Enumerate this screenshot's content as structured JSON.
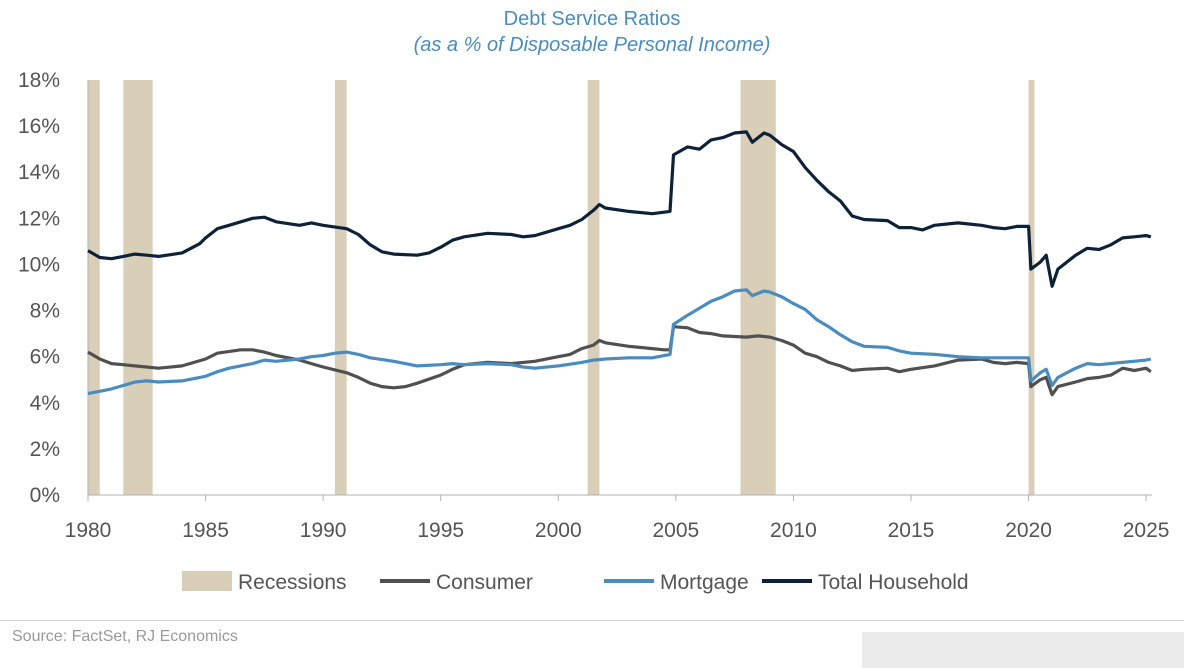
{
  "chart_data": {
    "type": "line",
    "title": "Debt Service Ratios",
    "subtitle": "(as a % of Disposable Personal Income)",
    "xlim": [
      1980,
      2025.25
    ],
    "ylim": [
      0,
      18
    ],
    "x_ticks": [
      "1980",
      "1985",
      "1990",
      "1995",
      "2000",
      "2005",
      "2010",
      "2015",
      "2020",
      "2025"
    ],
    "y_ticks": [
      "0%",
      "2%",
      "4%",
      "6%",
      "8%",
      "10%",
      "12%",
      "14%",
      "16%",
      "18%"
    ],
    "grid": false,
    "legend_position": "bottom",
    "recessions": {
      "name": "Recessions",
      "color": "#d9cfb8",
      "periods": [
        [
          1980.0,
          1980.5
        ],
        [
          1981.5,
          1982.75
        ],
        [
          1990.5,
          1991.0
        ],
        [
          2001.25,
          2001.75
        ],
        [
          2007.75,
          2009.25
        ],
        [
          2020.0,
          2020.25
        ]
      ]
    },
    "series": [
      {
        "name": "Consumer",
        "color": "#505050",
        "points": [
          [
            1980.0,
            6.2
          ],
          [
            1980.5,
            5.9
          ],
          [
            1981.0,
            5.7
          ],
          [
            1981.5,
            5.65
          ],
          [
            1982.0,
            5.6
          ],
          [
            1983.0,
            5.5
          ],
          [
            1984.0,
            5.6
          ],
          [
            1985.0,
            5.9
          ],
          [
            1985.5,
            6.15
          ],
          [
            1986.5,
            6.3
          ],
          [
            1987.0,
            6.3
          ],
          [
            1987.5,
            6.2
          ],
          [
            1988.0,
            6.05
          ],
          [
            1989.0,
            5.85
          ],
          [
            1989.5,
            5.7
          ],
          [
            1990.0,
            5.55
          ],
          [
            1991.0,
            5.3
          ],
          [
            1991.5,
            5.1
          ],
          [
            1992.0,
            4.85
          ],
          [
            1992.5,
            4.7
          ],
          [
            1993.0,
            4.65
          ],
          [
            1993.5,
            4.7
          ],
          [
            1994.0,
            4.85
          ],
          [
            1995.0,
            5.2
          ],
          [
            1995.5,
            5.45
          ],
          [
            1996.0,
            5.65
          ],
          [
            1997.0,
            5.75
          ],
          [
            1998.0,
            5.7
          ],
          [
            1999.0,
            5.8
          ],
          [
            1999.75,
            5.95
          ],
          [
            2000.0,
            6.0
          ],
          [
            2000.5,
            6.1
          ],
          [
            2001.0,
            6.35
          ],
          [
            2001.5,
            6.5
          ],
          [
            2001.75,
            6.7
          ],
          [
            2002.0,
            6.6
          ],
          [
            2003.0,
            6.45
          ],
          [
            2004.0,
            6.35
          ],
          [
            2004.5,
            6.3
          ],
          [
            2004.75,
            6.3
          ],
          [
            2004.9,
            7.3
          ],
          [
            2005.5,
            7.25
          ],
          [
            2006.0,
            7.05
          ],
          [
            2006.5,
            7.0
          ],
          [
            2007.0,
            6.9
          ],
          [
            2008.0,
            6.85
          ],
          [
            2008.5,
            6.9
          ],
          [
            2009.0,
            6.85
          ],
          [
            2009.5,
            6.7
          ],
          [
            2010.0,
            6.5
          ],
          [
            2010.5,
            6.15
          ],
          [
            2011.0,
            6.0
          ],
          [
            2011.5,
            5.75
          ],
          [
            2012.0,
            5.6
          ],
          [
            2012.5,
            5.4
          ],
          [
            2013.0,
            5.45
          ],
          [
            2014.0,
            5.5
          ],
          [
            2014.5,
            5.35
          ],
          [
            2015.0,
            5.45
          ],
          [
            2016.0,
            5.6
          ],
          [
            2017.0,
            5.85
          ],
          [
            2018.0,
            5.9
          ],
          [
            2018.5,
            5.75
          ],
          [
            2019.0,
            5.7
          ],
          [
            2019.5,
            5.75
          ],
          [
            2020.0,
            5.7
          ],
          [
            2020.1,
            4.7
          ],
          [
            2020.5,
            5.0
          ],
          [
            2020.75,
            5.1
          ],
          [
            2021.0,
            4.35
          ],
          [
            2021.25,
            4.7
          ],
          [
            2022.0,
            4.9
          ],
          [
            2022.5,
            5.05
          ],
          [
            2023.0,
            5.1
          ],
          [
            2023.5,
            5.2
          ],
          [
            2024.0,
            5.5
          ],
          [
            2024.5,
            5.4
          ],
          [
            2025.0,
            5.5
          ],
          [
            2025.2,
            5.35
          ]
        ]
      },
      {
        "name": "Mortgage",
        "color": "#4a8cc0",
        "points": [
          [
            1980.0,
            4.4
          ],
          [
            1980.5,
            4.5
          ],
          [
            1981.0,
            4.6
          ],
          [
            1981.5,
            4.75
          ],
          [
            1982.0,
            4.9
          ],
          [
            1982.5,
            4.95
          ],
          [
            1983.0,
            4.9
          ],
          [
            1984.0,
            4.95
          ],
          [
            1985.0,
            5.15
          ],
          [
            1985.5,
            5.35
          ],
          [
            1986.0,
            5.5
          ],
          [
            1987.0,
            5.7
          ],
          [
            1987.5,
            5.85
          ],
          [
            1988.0,
            5.8
          ],
          [
            1989.0,
            5.9
          ],
          [
            1989.5,
            6.0
          ],
          [
            1990.0,
            6.05
          ],
          [
            1990.5,
            6.15
          ],
          [
            1991.0,
            6.2
          ],
          [
            1991.5,
            6.1
          ],
          [
            1992.0,
            5.95
          ],
          [
            1993.0,
            5.8
          ],
          [
            1994.0,
            5.6
          ],
          [
            1995.0,
            5.65
          ],
          [
            1995.5,
            5.7
          ],
          [
            1996.0,
            5.65
          ],
          [
            1997.0,
            5.7
          ],
          [
            1998.0,
            5.65
          ],
          [
            1998.5,
            5.55
          ],
          [
            1999.0,
            5.5
          ],
          [
            2000.0,
            5.6
          ],
          [
            2001.0,
            5.75
          ],
          [
            2001.5,
            5.85
          ],
          [
            2002.0,
            5.9
          ],
          [
            2003.0,
            5.95
          ],
          [
            2004.0,
            5.95
          ],
          [
            2004.75,
            6.1
          ],
          [
            2004.9,
            7.4
          ],
          [
            2005.5,
            7.8
          ],
          [
            2006.0,
            8.1
          ],
          [
            2006.5,
            8.4
          ],
          [
            2007.0,
            8.6
          ],
          [
            2007.5,
            8.85
          ],
          [
            2008.0,
            8.9
          ],
          [
            2008.25,
            8.65
          ],
          [
            2008.75,
            8.85
          ],
          [
            2009.0,
            8.8
          ],
          [
            2009.5,
            8.6
          ],
          [
            2010.0,
            8.3
          ],
          [
            2010.5,
            8.05
          ],
          [
            2011.0,
            7.6
          ],
          [
            2011.5,
            7.3
          ],
          [
            2012.0,
            6.95
          ],
          [
            2012.5,
            6.65
          ],
          [
            2013.0,
            6.45
          ],
          [
            2014.0,
            6.4
          ],
          [
            2014.5,
            6.25
          ],
          [
            2015.0,
            6.15
          ],
          [
            2016.0,
            6.1
          ],
          [
            2017.0,
            6.0
          ],
          [
            2018.0,
            5.95
          ],
          [
            2019.0,
            5.95
          ],
          [
            2020.0,
            5.95
          ],
          [
            2020.1,
            4.95
          ],
          [
            2020.5,
            5.3
          ],
          [
            2020.75,
            5.45
          ],
          [
            2021.0,
            4.75
          ],
          [
            2021.25,
            5.1
          ],
          [
            2022.0,
            5.5
          ],
          [
            2022.5,
            5.7
          ],
          [
            2023.0,
            5.65
          ],
          [
            2024.0,
            5.75
          ],
          [
            2025.0,
            5.85
          ],
          [
            2025.2,
            5.9
          ]
        ]
      },
      {
        "name": "Total Household",
        "color": "#0d2238",
        "points": [
          [
            1980.0,
            10.6
          ],
          [
            1980.5,
            10.3
          ],
          [
            1981.0,
            10.25
          ],
          [
            1981.5,
            10.35
          ],
          [
            1982.0,
            10.45
          ],
          [
            1982.5,
            10.4
          ],
          [
            1983.0,
            10.35
          ],
          [
            1984.0,
            10.5
          ],
          [
            1984.75,
            10.9
          ],
          [
            1985.0,
            11.15
          ],
          [
            1985.5,
            11.55
          ],
          [
            1986.0,
            11.7
          ],
          [
            1986.5,
            11.85
          ],
          [
            1987.0,
            12.0
          ],
          [
            1987.5,
            12.05
          ],
          [
            1988.0,
            11.85
          ],
          [
            1989.0,
            11.7
          ],
          [
            1989.5,
            11.8
          ],
          [
            1990.0,
            11.7
          ],
          [
            1991.0,
            11.55
          ],
          [
            1991.5,
            11.3
          ],
          [
            1992.0,
            10.85
          ],
          [
            1992.5,
            10.55
          ],
          [
            1993.0,
            10.45
          ],
          [
            1994.0,
            10.4
          ],
          [
            1994.5,
            10.5
          ],
          [
            1995.0,
            10.75
          ],
          [
            1995.5,
            11.05
          ],
          [
            1996.0,
            11.2
          ],
          [
            1997.0,
            11.35
          ],
          [
            1998.0,
            11.3
          ],
          [
            1998.5,
            11.2
          ],
          [
            1999.0,
            11.25
          ],
          [
            2000.0,
            11.55
          ],
          [
            2000.5,
            11.7
          ],
          [
            2001.0,
            11.95
          ],
          [
            2001.5,
            12.35
          ],
          [
            2001.75,
            12.6
          ],
          [
            2002.0,
            12.45
          ],
          [
            2003.0,
            12.3
          ],
          [
            2004.0,
            12.2
          ],
          [
            2004.75,
            12.3
          ],
          [
            2004.9,
            14.75
          ],
          [
            2005.5,
            15.1
          ],
          [
            2006.0,
            15.0
          ],
          [
            2006.5,
            15.4
          ],
          [
            2007.0,
            15.5
          ],
          [
            2007.5,
            15.7
          ],
          [
            2008.0,
            15.75
          ],
          [
            2008.25,
            15.3
          ],
          [
            2008.75,
            15.7
          ],
          [
            2009.0,
            15.6
          ],
          [
            2009.5,
            15.2
          ],
          [
            2010.0,
            14.9
          ],
          [
            2010.5,
            14.2
          ],
          [
            2011.0,
            13.65
          ],
          [
            2011.5,
            13.15
          ],
          [
            2012.0,
            12.75
          ],
          [
            2012.5,
            12.1
          ],
          [
            2013.0,
            11.95
          ],
          [
            2014.0,
            11.9
          ],
          [
            2014.5,
            11.6
          ],
          [
            2015.0,
            11.6
          ],
          [
            2015.5,
            11.5
          ],
          [
            2016.0,
            11.7
          ],
          [
            2017.0,
            11.8
          ],
          [
            2018.0,
            11.7
          ],
          [
            2018.5,
            11.6
          ],
          [
            2019.0,
            11.55
          ],
          [
            2019.5,
            11.65
          ],
          [
            2020.0,
            11.65
          ],
          [
            2020.1,
            9.8
          ],
          [
            2020.5,
            10.1
          ],
          [
            2020.75,
            10.4
          ],
          [
            2021.0,
            9.05
          ],
          [
            2021.25,
            9.8
          ],
          [
            2022.0,
            10.4
          ],
          [
            2022.5,
            10.7
          ],
          [
            2023.0,
            10.65
          ],
          [
            2023.5,
            10.85
          ],
          [
            2024.0,
            11.15
          ],
          [
            2024.5,
            11.2
          ],
          [
            2025.0,
            11.25
          ],
          [
            2025.2,
            11.2
          ]
        ]
      }
    ]
  },
  "source": "Source: FactSet, RJ Economics"
}
